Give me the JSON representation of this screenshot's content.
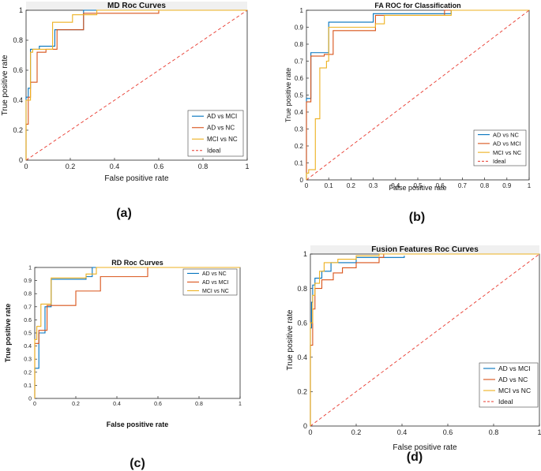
{
  "colors": {
    "blue": "#0072BD",
    "orange": "#D95319",
    "yellow": "#EDB120",
    "ideal": "#E8382D",
    "axis": "#262626",
    "grid": "#f0f0f0"
  },
  "panel_labels": [
    "(a)",
    "(b)",
    "(c)",
    "(d)"
  ],
  "chart_data": [
    {
      "id": "a",
      "type": "line",
      "title": "MD Roc Curves",
      "xlabel": "False positive rate",
      "ylabel": "True positive rate",
      "xlim": [
        0,
        1
      ],
      "ylim": [
        0,
        1
      ],
      "xticks": [
        0,
        0.2,
        0.4,
        0.6,
        0.8,
        1
      ],
      "xtick_labels": [
        "0",
        "0.2",
        "0.4",
        "0.6",
        "0.8",
        "1"
      ],
      "yticks": [
        0,
        0.2,
        0.4,
        0.6,
        0.8,
        1
      ],
      "ytick_labels": [
        "0",
        "0.2",
        "0.4",
        "0.6",
        "0.8",
        "1"
      ],
      "legend_position": "lower-right",
      "series": [
        {
          "name": "AD vs MCI",
          "color": "blue",
          "x": [
            0,
            0,
            0.01,
            0.01,
            0.02,
            0.02,
            0.06,
            0.06,
            0.13,
            0.13,
            0.26,
            0.26,
            0.6,
            1
          ],
          "y": [
            0,
            0.42,
            0.42,
            0.48,
            0.48,
            0.74,
            0.74,
            0.76,
            0.76,
            0.87,
            0.87,
            1,
            1,
            1
          ]
        },
        {
          "name": "AD vs NC",
          "color": "orange",
          "x": [
            0,
            0,
            0.01,
            0.01,
            0.02,
            0.02,
            0.05,
            0.05,
            0.09,
            0.09,
            0.14,
            0.14,
            0.26,
            0.26,
            0.6,
            0.6,
            1
          ],
          "y": [
            0,
            0.24,
            0.24,
            0.42,
            0.42,
            0.52,
            0.52,
            0.72,
            0.72,
            0.74,
            0.74,
            0.87,
            0.87,
            0.98,
            0.98,
            1,
            1
          ]
        },
        {
          "name": "MCI vs NC",
          "color": "yellow",
          "x": [
            0,
            0,
            0.02,
            0.02,
            0.03,
            0.03,
            0.12,
            0.12,
            0.21,
            0.21,
            0.32,
            0.32,
            1
          ],
          "y": [
            0,
            0.4,
            0.4,
            0.72,
            0.72,
            0.74,
            0.74,
            0.92,
            0.92,
            0.97,
            0.97,
            1,
            1
          ]
        },
        {
          "name": "Ideal",
          "color": "ideal",
          "dashed": true,
          "x": [
            0,
            1
          ],
          "y": [
            0,
            1
          ]
        }
      ]
    },
    {
      "id": "b",
      "type": "line",
      "title": "FA ROC for Classification",
      "xlabel": "False positive rate",
      "ylabel": "True positive rate",
      "xlim": [
        0,
        1
      ],
      "ylim": [
        0,
        1
      ],
      "xticks": [
        0,
        0.1,
        0.2,
        0.3,
        0.4,
        0.5,
        0.6,
        0.7,
        0.8,
        0.9,
        1
      ],
      "xtick_labels": [
        "0",
        "0.1",
        "0.2",
        "0.3",
        "0.4",
        "0.5",
        "0.6",
        "0.7",
        "0.8",
        "0.9",
        "1"
      ],
      "yticks": [
        0,
        0.1,
        0.2,
        0.3,
        0.4,
        0.5,
        0.6,
        0.7,
        0.8,
        0.9,
        1
      ],
      "ytick_labels": [
        "0",
        "0.1",
        "0.2",
        "0.3",
        "0.4",
        "0.5",
        "0.6",
        "0.7",
        "0.8",
        "0.9",
        "1"
      ],
      "legend_position": "lower-right",
      "series": [
        {
          "name": "AD vs NC",
          "color": "blue",
          "x": [
            0,
            0,
            0.02,
            0.02,
            0.1,
            0.1,
            0.3,
            0.3,
            0.65,
            0.65,
            1
          ],
          "y": [
            0,
            0.48,
            0.48,
            0.75,
            0.75,
            0.93,
            0.93,
            0.98,
            0.98,
            1,
            1
          ]
        },
        {
          "name": "AD vs MCI",
          "color": "orange",
          "x": [
            0,
            0,
            0.02,
            0.02,
            0.08,
            0.08,
            0.12,
            0.12,
            0.31,
            0.31,
            0.62,
            0.62,
            1
          ],
          "y": [
            0,
            0.46,
            0.46,
            0.73,
            0.73,
            0.74,
            0.74,
            0.88,
            0.88,
            0.97,
            0.97,
            1,
            1
          ]
        },
        {
          "name": "MCI vs NC",
          "color": "yellow",
          "x": [
            0,
            0,
            0.01,
            0.01,
            0.04,
            0.04,
            0.06,
            0.06,
            0.09,
            0.09,
            0.1,
            0.1,
            0.31,
            0.31,
            0.35,
            0.35,
            0.65,
            0.65,
            1
          ],
          "y": [
            0,
            0.04,
            0.04,
            0.06,
            0.06,
            0.36,
            0.36,
            0.66,
            0.66,
            0.7,
            0.7,
            0.9,
            0.9,
            0.92,
            0.92,
            0.97,
            0.97,
            1,
            1
          ]
        },
        {
          "name": "Ideal",
          "color": "ideal",
          "dashed": true,
          "x": [
            0,
            1
          ],
          "y": [
            0,
            1
          ]
        }
      ]
    },
    {
      "id": "c",
      "type": "line",
      "title": "RD Roc Curves",
      "xlabel": "False positive rate",
      "ylabel": "True positive rate",
      "xlim": [
        0,
        1
      ],
      "ylim": [
        0,
        1
      ],
      "xticks": [
        0,
        0.2,
        0.4,
        0.6,
        0.8,
        1
      ],
      "xtick_labels": [
        "0",
        "0.2",
        "0.4",
        "0.6",
        "0.8",
        "1"
      ],
      "yticks": [
        0,
        0.1,
        0.2,
        0.3,
        0.4,
        0.5,
        0.6,
        0.7,
        0.8,
        0.9,
        1
      ],
      "ytick_labels": [
        "0",
        "0.1",
        "0.2",
        "0.3",
        "0.4",
        "0.5",
        "0.6",
        "0.7",
        "0.8",
        "0.9",
        "1"
      ],
      "legend_position": "top-right",
      "series": [
        {
          "name": "AD vs NC",
          "color": "blue",
          "x": [
            0,
            0,
            0.02,
            0.02,
            0.05,
            0.05,
            0.08,
            0.08,
            0.25,
            0.25,
            0.28,
            0.28,
            1
          ],
          "y": [
            0,
            0.23,
            0.23,
            0.5,
            0.5,
            0.7,
            0.7,
            0.91,
            0.91,
            0.93,
            0.93,
            1,
            1
          ]
        },
        {
          "name": "AD vs MCI",
          "color": "orange",
          "x": [
            0,
            0,
            0.02,
            0.02,
            0.06,
            0.06,
            0.2,
            0.2,
            0.32,
            0.32,
            0.55,
            0.55,
            1
          ],
          "y": [
            0,
            0.42,
            0.42,
            0.52,
            0.52,
            0.71,
            0.71,
            0.82,
            0.82,
            0.93,
            0.93,
            1,
            1
          ]
        },
        {
          "name": "MCI vs NC",
          "color": "yellow",
          "x": [
            0,
            0,
            0.01,
            0.01,
            0.03,
            0.03,
            0.08,
            0.08,
            0.25,
            0.25,
            0.3,
            0.3,
            1
          ],
          "y": [
            0,
            0.45,
            0.45,
            0.55,
            0.55,
            0.72,
            0.72,
            0.92,
            0.92,
            0.95,
            0.95,
            1,
            1
          ]
        }
      ]
    },
    {
      "id": "d",
      "type": "line",
      "title": "Fusion Features Roc Curves",
      "xlabel": "False positive rate",
      "ylabel": "True positive rate",
      "xlim": [
        0,
        1
      ],
      "ylim": [
        0,
        1
      ],
      "xticks": [
        0,
        0.2,
        0.4,
        0.6,
        0.8,
        1
      ],
      "xtick_labels": [
        "0",
        "0.2",
        "0.4",
        "0.6",
        "0.8",
        "1"
      ],
      "yticks": [
        0,
        0.2,
        0.4,
        0.6,
        0.8,
        1
      ],
      "ytick_labels": [
        "0",
        "0.2",
        "0.4",
        "0.6",
        "0.8",
        "1"
      ],
      "legend_position": "lower-right",
      "series": [
        {
          "name": "AD vs MCI",
          "color": "blue",
          "x": [
            0,
            0,
            0.005,
            0.005,
            0.01,
            0.01,
            0.02,
            0.02,
            0.05,
            0.05,
            0.09,
            0.09,
            0.2,
            0.2,
            0.41,
            0.41
          ],
          "y": [
            0,
            0.57,
            0.57,
            0.72,
            0.72,
            0.82,
            0.82,
            0.86,
            0.86,
            0.9,
            0.9,
            0.95,
            0.95,
            0.98,
            0.98,
            0.99
          ]
        },
        {
          "name": "AD vs NC",
          "color": "orange",
          "x": [
            0,
            0,
            0.01,
            0.01,
            0.02,
            0.02,
            0.05,
            0.05,
            0.1,
            0.1,
            0.14,
            0.14,
            0.2,
            0.2,
            0.3,
            0.3,
            0.32,
            0.32,
            1
          ],
          "y": [
            0,
            0.47,
            0.47,
            0.68,
            0.68,
            0.8,
            0.8,
            0.85,
            0.85,
            0.89,
            0.89,
            0.92,
            0.92,
            0.95,
            0.95,
            0.98,
            0.98,
            1,
            1
          ]
        },
        {
          "name": "MCI vs NC",
          "color": "yellow",
          "x": [
            0,
            0,
            0.01,
            0.01,
            0.02,
            0.02,
            0.04,
            0.04,
            0.06,
            0.06,
            0.12,
            0.12,
            0.2,
            0.2,
            0.3,
            0.3,
            1
          ],
          "y": [
            0,
            0.6,
            0.6,
            0.76,
            0.76,
            0.83,
            0.83,
            0.9,
            0.9,
            0.95,
            0.95,
            0.97,
            0.97,
            0.99,
            0.99,
            1,
            1
          ]
        },
        {
          "name": "Ideal",
          "color": "ideal",
          "dashed": true,
          "x": [
            0,
            1
          ],
          "y": [
            0,
            1
          ]
        }
      ]
    }
  ]
}
